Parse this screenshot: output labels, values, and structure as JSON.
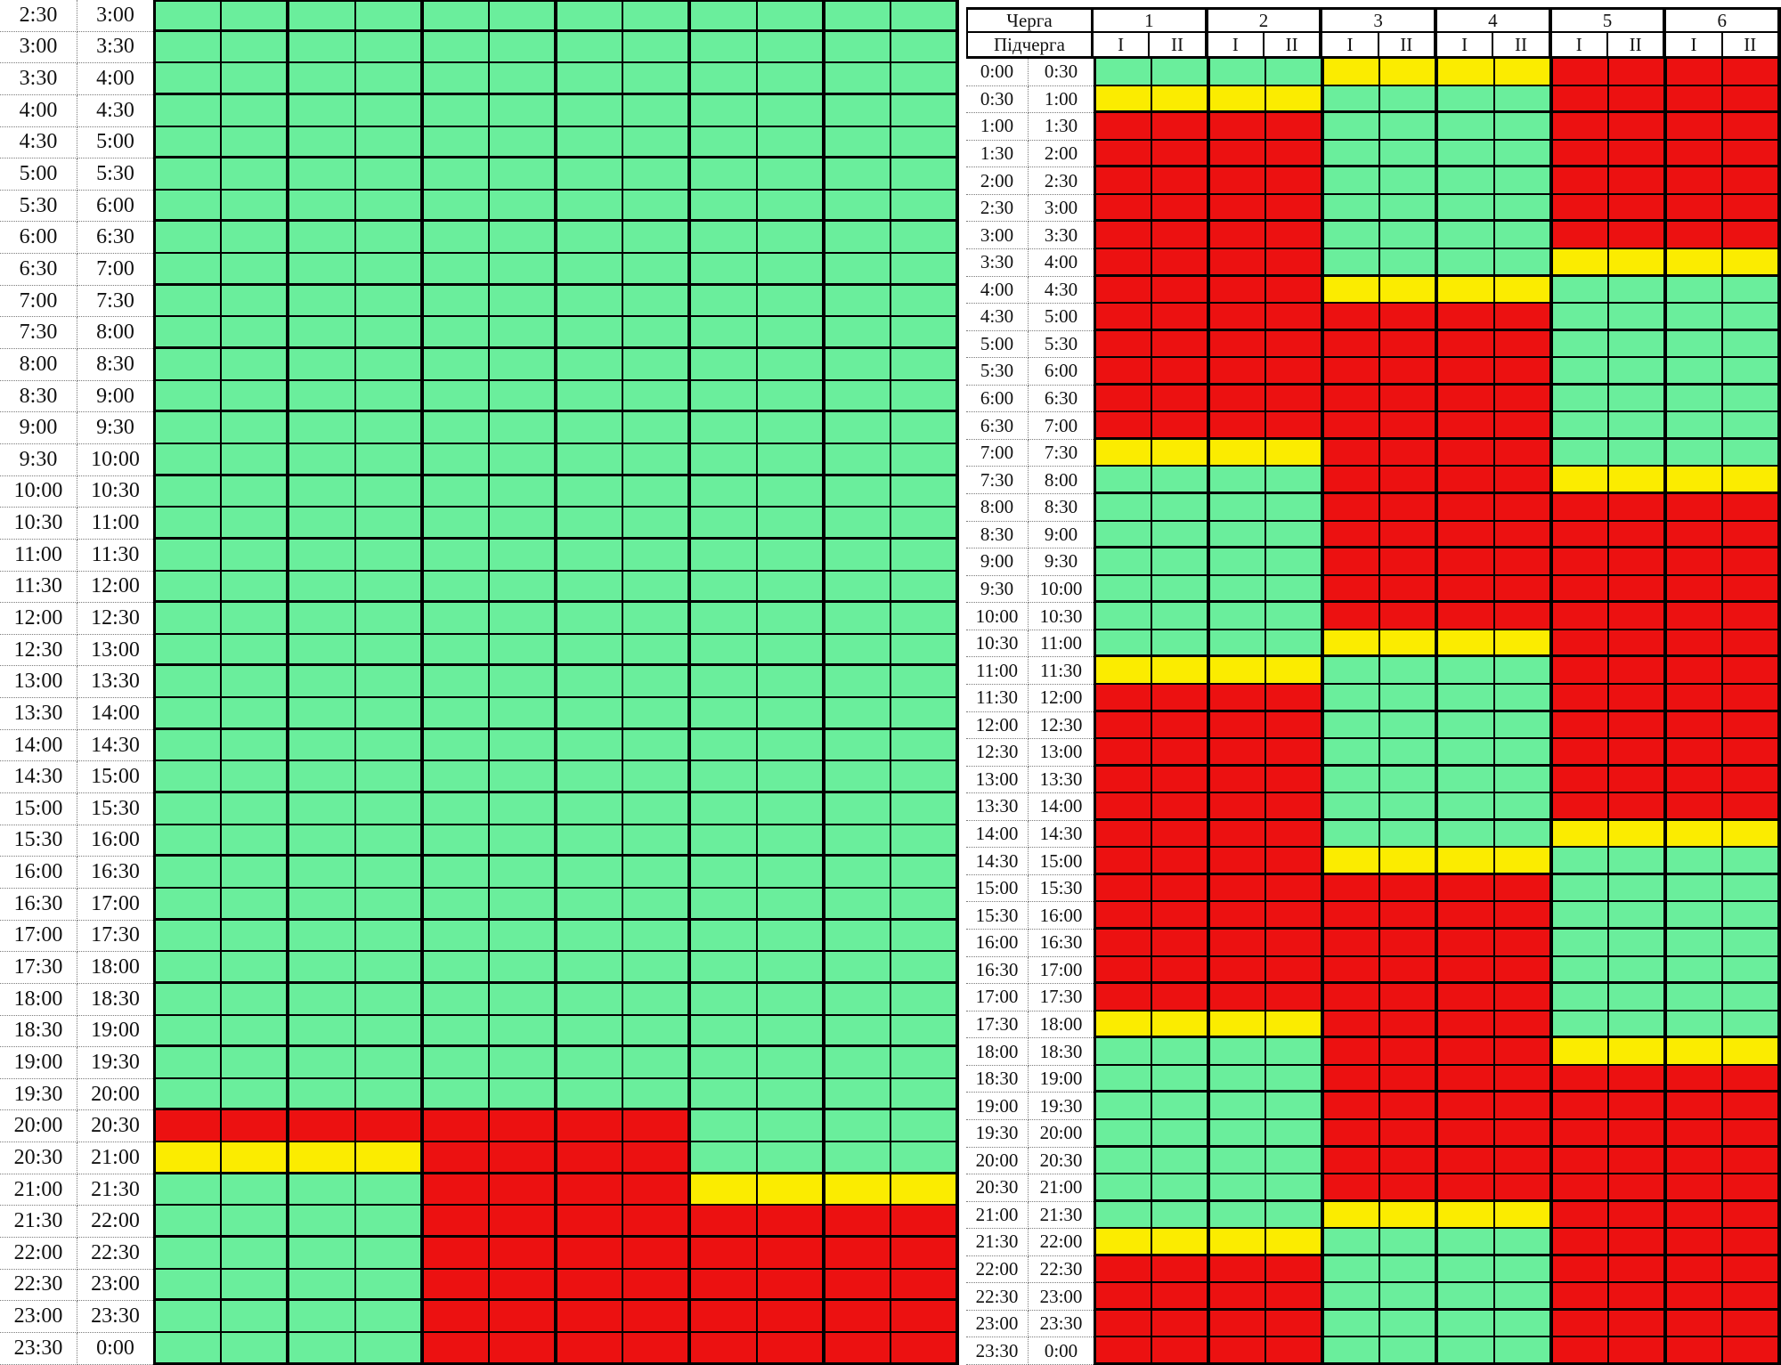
{
  "colors": {
    "on_green": "#6aee9c",
    "maybe_yellow": "#fbec00",
    "off_red": "#ec1111",
    "grid_border": "#000000",
    "dotted_border": "#7b7b7b",
    "background": "#ffffff"
  },
  "status_key": {
    "G": "green (power on)",
    "Y": "yellow (possible outage)",
    "R": "red (power off)"
  },
  "row_format": [
    "start_time",
    "end_time",
    "queue_colors_1_to_6 (each queue has two subqueue cells I and II with the same color)"
  ],
  "chart_data": [
    {
      "id": "left_schedule",
      "type": "heatmap",
      "columns_note": "12 columns = 6 queues x 2 subqueues, no visible header (cropped)",
      "time_rows": [
        [
          "2:30",
          "3:00",
          "GGGGGG"
        ],
        [
          "3:00",
          "3:30",
          "GGGGGG"
        ],
        [
          "3:30",
          "4:00",
          "GGGGGG"
        ],
        [
          "4:00",
          "4:30",
          "GGGGGG"
        ],
        [
          "4:30",
          "5:00",
          "GGGGGG"
        ],
        [
          "5:00",
          "5:30",
          "GGGGGG"
        ],
        [
          "5:30",
          "6:00",
          "GGGGGG"
        ],
        [
          "6:00",
          "6:30",
          "GGGGGG"
        ],
        [
          "6:30",
          "7:00",
          "GGGGGG"
        ],
        [
          "7:00",
          "7:30",
          "GGGGGG"
        ],
        [
          "7:30",
          "8:00",
          "GGGGGG"
        ],
        [
          "8:00",
          "8:30",
          "GGGGGG"
        ],
        [
          "8:30",
          "9:00",
          "GGGGGG"
        ],
        [
          "9:00",
          "9:30",
          "GGGGGG"
        ],
        [
          "9:30",
          "10:00",
          "GGGGGG"
        ],
        [
          "10:00",
          "10:30",
          "GGGGGG"
        ],
        [
          "10:30",
          "11:00",
          "GGGGGG"
        ],
        [
          "11:00",
          "11:30",
          "GGGGGG"
        ],
        [
          "11:30",
          "12:00",
          "GGGGGG"
        ],
        [
          "12:00",
          "12:30",
          "GGGGGG"
        ],
        [
          "12:30",
          "13:00",
          "GGGGGG"
        ],
        [
          "13:00",
          "13:30",
          "GGGGGG"
        ],
        [
          "13:30",
          "14:00",
          "GGGGGG"
        ],
        [
          "14:00",
          "14:30",
          "GGGGGG"
        ],
        [
          "14:30",
          "15:00",
          "GGGGGG"
        ],
        [
          "15:00",
          "15:30",
          "GGGGGG"
        ],
        [
          "15:30",
          "16:00",
          "GGGGGG"
        ],
        [
          "16:00",
          "16:30",
          "GGGGGG"
        ],
        [
          "16:30",
          "17:00",
          "GGGGGG"
        ],
        [
          "17:00",
          "17:30",
          "GGGGGG"
        ],
        [
          "17:30",
          "18:00",
          "GGGGGG"
        ],
        [
          "18:00",
          "18:30",
          "GGGGGG"
        ],
        [
          "18:30",
          "19:00",
          "GGGGGG"
        ],
        [
          "19:00",
          "19:30",
          "GGGGGG"
        ],
        [
          "19:30",
          "20:00",
          "GGGGGG"
        ],
        [
          "20:00",
          "20:30",
          "RRRRGG"
        ],
        [
          "20:30",
          "21:00",
          "YYRRGG"
        ],
        [
          "21:00",
          "21:30",
          "GGRRYY"
        ],
        [
          "21:30",
          "22:00",
          "GGRRRR"
        ],
        [
          "22:00",
          "22:30",
          "GGRRRR"
        ],
        [
          "22:30",
          "23:00",
          "GGRRRR"
        ],
        [
          "23:00",
          "23:30",
          "GGRRRR"
        ],
        [
          "23:30",
          "0:00",
          "GGRRRR"
        ]
      ]
    },
    {
      "id": "right_schedule",
      "type": "heatmap",
      "header": {
        "queue_label": "Черга",
        "subqueue_label": "Підчерга",
        "queues": [
          "1",
          "2",
          "3",
          "4",
          "5",
          "6"
        ],
        "subqueues": [
          "I",
          "II"
        ]
      },
      "time_rows": [
        [
          "0:00",
          "0:30",
          "GGYYRR"
        ],
        [
          "0:30",
          "1:00",
          "YYGGRR"
        ],
        [
          "1:00",
          "1:30",
          "RRGGRR"
        ],
        [
          "1:30",
          "2:00",
          "RRGGRR"
        ],
        [
          "2:00",
          "2:30",
          "RRGGRR"
        ],
        [
          "2:30",
          "3:00",
          "RRGGRR"
        ],
        [
          "3:00",
          "3:30",
          "RRGGRR"
        ],
        [
          "3:30",
          "4:00",
          "RRGGYY"
        ],
        [
          "4:00",
          "4:30",
          "RRYYGG"
        ],
        [
          "4:30",
          "5:00",
          "RRRRGG"
        ],
        [
          "5:00",
          "5:30",
          "RRRRGG"
        ],
        [
          "5:30",
          "6:00",
          "RRRRGG"
        ],
        [
          "6:00",
          "6:30",
          "RRRRGG"
        ],
        [
          "6:30",
          "7:00",
          "RRRRGG"
        ],
        [
          "7:00",
          "7:30",
          "YYRRGG"
        ],
        [
          "7:30",
          "8:00",
          "GGRRYY"
        ],
        [
          "8:00",
          "8:30",
          "GGRRRR"
        ],
        [
          "8:30",
          "9:00",
          "GGRRRR"
        ],
        [
          "9:00",
          "9:30",
          "GGRRRR"
        ],
        [
          "9:30",
          "10:00",
          "GGRRRR"
        ],
        [
          "10:00",
          "10:30",
          "GGRRRR"
        ],
        [
          "10:30",
          "11:00",
          "GGYYRR"
        ],
        [
          "11:00",
          "11:30",
          "YYGGRR"
        ],
        [
          "11:30",
          "12:00",
          "RRGGRR"
        ],
        [
          "12:00",
          "12:30",
          "RRGGRR"
        ],
        [
          "12:30",
          "13:00",
          "RRGGRR"
        ],
        [
          "13:00",
          "13:30",
          "RRGGRR"
        ],
        [
          "13:30",
          "14:00",
          "RRGGRR"
        ],
        [
          "14:00",
          "14:30",
          "RRGGYY"
        ],
        [
          "14:30",
          "15:00",
          "RRYYGG"
        ],
        [
          "15:00",
          "15:30",
          "RRRRGG"
        ],
        [
          "15:30",
          "16:00",
          "RRRRGG"
        ],
        [
          "16:00",
          "16:30",
          "RRRRGG"
        ],
        [
          "16:30",
          "17:00",
          "RRRRGG"
        ],
        [
          "17:00",
          "17:30",
          "RRRRGG"
        ],
        [
          "17:30",
          "18:00",
          "YYRRGG"
        ],
        [
          "18:00",
          "18:30",
          "GGRRYY"
        ],
        [
          "18:30",
          "19:00",
          "GGRRRR"
        ],
        [
          "19:00",
          "19:30",
          "GGRRRR"
        ],
        [
          "19:30",
          "20:00",
          "GGRRRR"
        ],
        [
          "20:00",
          "20:30",
          "GGRRRR"
        ],
        [
          "20:30",
          "21:00",
          "GGRRRR"
        ],
        [
          "21:00",
          "21:30",
          "GGYYRR"
        ],
        [
          "21:30",
          "22:00",
          "YYGGRR"
        ],
        [
          "22:00",
          "22:30",
          "RRGGRR"
        ],
        [
          "22:30",
          "23:00",
          "RRGGRR"
        ],
        [
          "23:00",
          "23:30",
          "RRGGRR"
        ],
        [
          "23:30",
          "0:00",
          "RRGGRR"
        ]
      ]
    }
  ]
}
